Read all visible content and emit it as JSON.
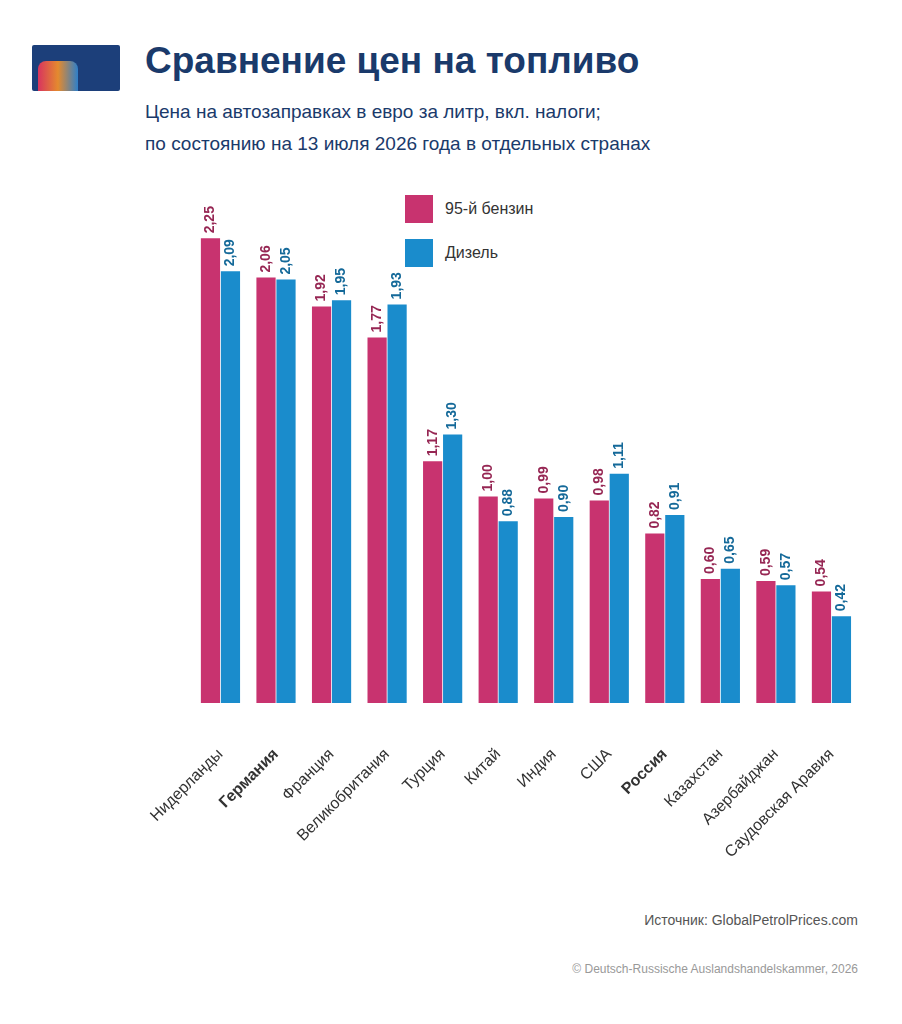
{
  "chart_data": {
    "type": "bar",
    "title": "Сравнение цен на топливо",
    "subtitle": [
      "Цена на автозаправках в евро за литр, вкл. налоги;",
      "по состоянию на 13 июля 2026 года в отдельных странах"
    ],
    "source": "Источник: GlobalPetrolPrices.com",
    "copyright": "© Deutsch-Russische Auslandshandelskammer, 2026",
    "categories": [
      "Нидерланды",
      "Германия",
      "Франция",
      "Великобритания",
      "Турция",
      "Китай",
      "Индия",
      "США",
      "Россия",
      "Казахстан",
      "Азербайджан",
      "Саудовская Аравия"
    ],
    "series": [
      {
        "name": "95-й бензин",
        "color": "#c8336f",
        "values": [
          2.25,
          2.06,
          1.92,
          1.77,
          1.17,
          1.0,
          0.99,
          0.98,
          0.82,
          0.6,
          0.59,
          0.54
        ],
        "value_labels": [
          "2,25",
          "2,06",
          "1,92",
          "1,77",
          "1,17",
          "1,00",
          "0,99",
          "0,98",
          "0,82",
          "0,60",
          "0,59",
          "0,54"
        ]
      },
      {
        "name": "Дизель",
        "color": "#1a8ccc",
        "values": [
          2.09,
          2.05,
          1.95,
          1.93,
          1.3,
          0.88,
          0.9,
          1.11,
          0.91,
          0.65,
          0.57,
          0.42
        ],
        "value_labels": [
          "2,09",
          "2,05",
          "1,95",
          "1,93",
          "1,30",
          "0,88",
          "0,90",
          "1,11",
          "0,91",
          "0,65",
          "0,57",
          "0,42"
        ]
      }
    ],
    "ylim": [
      0,
      2.3
    ],
    "grid": false,
    "legend": "top",
    "data_labels": true,
    "tick_labels": "x"
  }
}
